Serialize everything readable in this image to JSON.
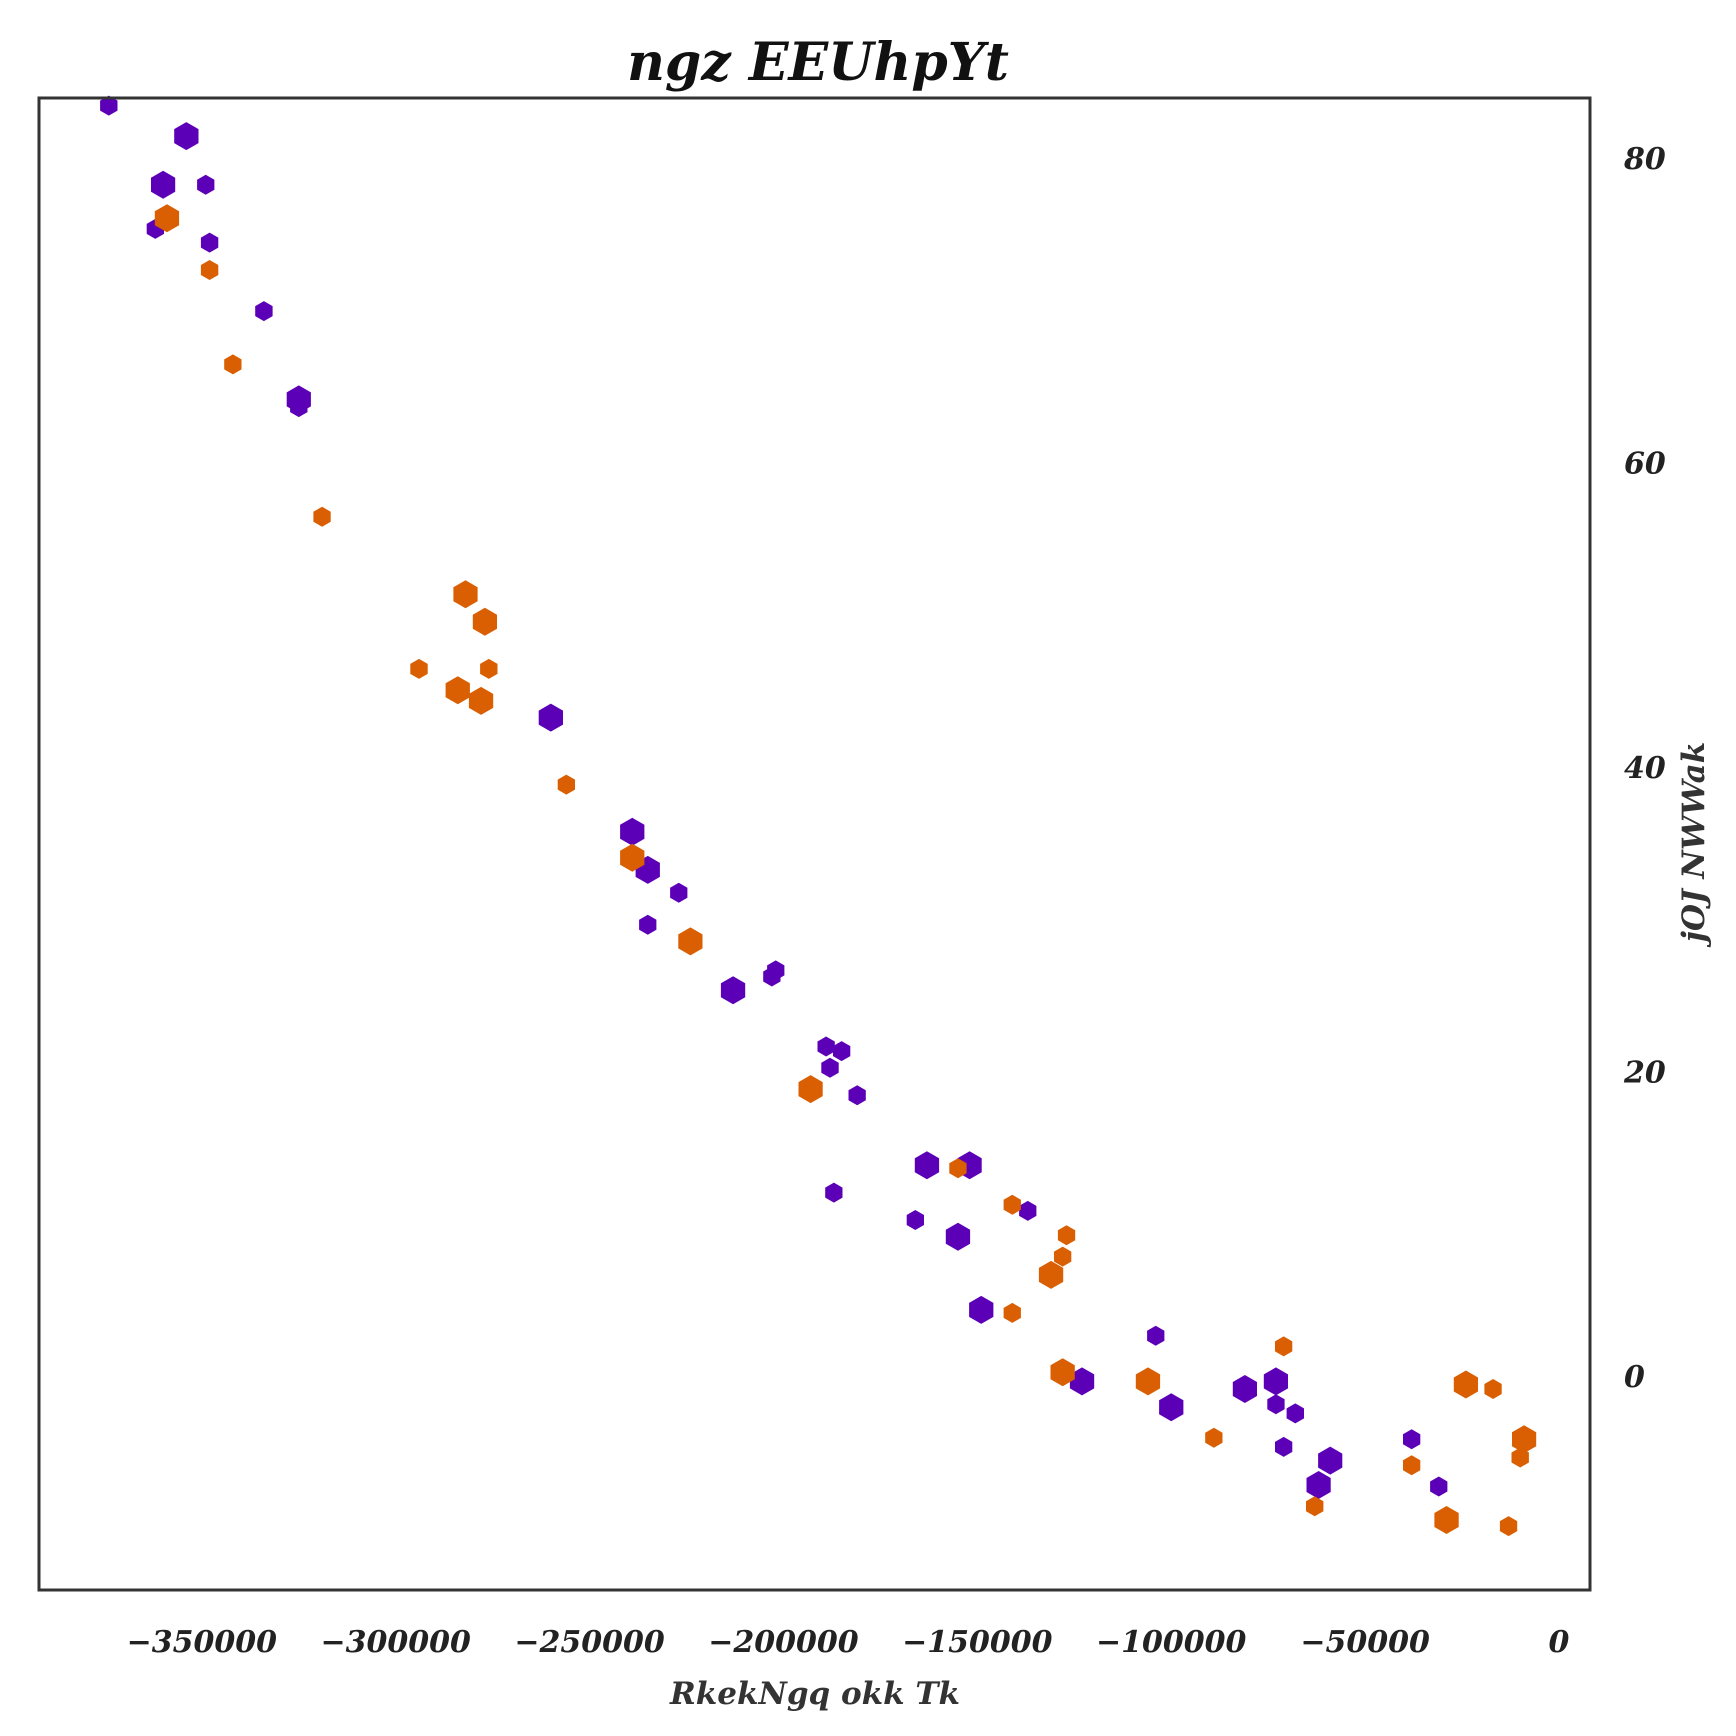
{
  "chart_data": {
    "type": "scatter",
    "title": "ngz EEUhpYt",
    "xlabel": "RkekNgq okk Tk",
    "ylabel": "jOJ NWWak",
    "y_axis_side": "right",
    "marker": "hexagon",
    "grid": false,
    "legend": "none",
    "xlim": [
      -392000,
      8000
    ],
    "ylim": [
      -14,
      84
    ],
    "x_ticks": [
      {
        "value": -350000,
        "label": "−350000"
      },
      {
        "value": -300000,
        "label": "−300000"
      },
      {
        "value": -250000,
        "label": "−250000"
      },
      {
        "value": -200000,
        "label": "−200000"
      },
      {
        "value": -150000,
        "label": "−150000"
      },
      {
        "value": -100000,
        "label": "−100000"
      },
      {
        "value": -50000,
        "label": "−50000"
      },
      {
        "value": 0,
        "label": "0"
      }
    ],
    "y_ticks": [
      {
        "value": 0,
        "label": "0"
      },
      {
        "value": 20,
        "label": "20"
      },
      {
        "value": 40,
        "label": "40"
      },
      {
        "value": 60,
        "label": "60"
      },
      {
        "value": 80,
        "label": "80"
      }
    ],
    "series": [
      {
        "color": "#5c00b8",
        "points": [
          {
            "x": -374000,
            "y": 83.5,
            "size": "small"
          },
          {
            "x": -354000,
            "y": 81.5,
            "size": "large"
          },
          {
            "x": -360000,
            "y": 78.3,
            "size": "large"
          },
          {
            "x": -349000,
            "y": 78.3,
            "size": "small"
          },
          {
            "x": -362000,
            "y": 75.4,
            "size": "small"
          },
          {
            "x": -348000,
            "y": 74.5,
            "size": "small"
          },
          {
            "x": -334000,
            "y": 70.0,
            "size": "small"
          },
          {
            "x": -325000,
            "y": 63.7,
            "size": "small"
          },
          {
            "x": -325000,
            "y": 64.2,
            "size": "large"
          },
          {
            "x": -260000,
            "y": 43.3,
            "size": "large"
          },
          {
            "x": -239000,
            "y": 35.8,
            "size": "large"
          },
          {
            "x": -235000,
            "y": 33.3,
            "size": "large"
          },
          {
            "x": -227000,
            "y": 31.8,
            "size": "small"
          },
          {
            "x": -235000,
            "y": 29.7,
            "size": "small"
          },
          {
            "x": -213000,
            "y": 25.4,
            "size": "large"
          },
          {
            "x": -203000,
            "y": 26.3,
            "size": "small"
          },
          {
            "x": -202000,
            "y": 26.7,
            "size": "small"
          },
          {
            "x": -189000,
            "y": 21.7,
            "size": "small"
          },
          {
            "x": -185000,
            "y": 21.4,
            "size": "small"
          },
          {
            "x": -188000,
            "y": 20.3,
            "size": "small"
          },
          {
            "x": -181000,
            "y": 18.5,
            "size": "small"
          },
          {
            "x": -187000,
            "y": 12.1,
            "size": "small"
          },
          {
            "x": -163000,
            "y": 13.9,
            "size": "large"
          },
          {
            "x": -152000,
            "y": 13.9,
            "size": "large"
          },
          {
            "x": -166000,
            "y": 10.3,
            "size": "small"
          },
          {
            "x": -155000,
            "y": 9.2,
            "size": "large"
          },
          {
            "x": -137000,
            "y": 10.9,
            "size": "small"
          },
          {
            "x": -149000,
            "y": 4.4,
            "size": "large"
          },
          {
            "x": -123000,
            "y": -0.3,
            "size": "large"
          },
          {
            "x": -104000,
            "y": 2.7,
            "size": "small"
          },
          {
            "x": -100000,
            "y": -2.0,
            "size": "large"
          },
          {
            "x": -81000,
            "y": -0.8,
            "size": "large"
          },
          {
            "x": -73000,
            "y": -0.3,
            "size": "large"
          },
          {
            "x": -73000,
            "y": -1.8,
            "size": "small"
          },
          {
            "x": -68000,
            "y": -2.4,
            "size": "small"
          },
          {
            "x": -71000,
            "y": -4.6,
            "size": "small"
          },
          {
            "x": -59000,
            "y": -5.5,
            "size": "large"
          },
          {
            "x": -62000,
            "y": -7.1,
            "size": "large"
          },
          {
            "x": -38000,
            "y": -4.1,
            "size": "small"
          },
          {
            "x": -31000,
            "y": -7.2,
            "size": "small"
          }
        ]
      },
      {
        "color": "#d95f02",
        "points": [
          {
            "x": -359000,
            "y": 76.1,
            "size": "large"
          },
          {
            "x": -348000,
            "y": 72.7,
            "size": "small"
          },
          {
            "x": -342000,
            "y": 66.5,
            "size": "small"
          },
          {
            "x": -319000,
            "y": 56.5,
            "size": "small"
          },
          {
            "x": -282000,
            "y": 51.4,
            "size": "large"
          },
          {
            "x": -277000,
            "y": 49.6,
            "size": "large"
          },
          {
            "x": -294000,
            "y": 46.5,
            "size": "small"
          },
          {
            "x": -276000,
            "y": 46.5,
            "size": "small"
          },
          {
            "x": -284000,
            "y": 45.1,
            "size": "large"
          },
          {
            "x": -278000,
            "y": 44.4,
            "size": "large"
          },
          {
            "x": -256000,
            "y": 38.9,
            "size": "small"
          },
          {
            "x": -239000,
            "y": 34.1,
            "size": "large"
          },
          {
            "x": -224000,
            "y": 28.6,
            "size": "large"
          },
          {
            "x": -193000,
            "y": 18.9,
            "size": "large"
          },
          {
            "x": -155000,
            "y": 13.7,
            "size": "small"
          },
          {
            "x": -141000,
            "y": 11.3,
            "size": "small"
          },
          {
            "x": -127000,
            "y": 9.3,
            "size": "small"
          },
          {
            "x": -128000,
            "y": 7.9,
            "size": "small"
          },
          {
            "x": -131000,
            "y": 6.7,
            "size": "large"
          },
          {
            "x": -141000,
            "y": 4.2,
            "size": "small"
          },
          {
            "x": -128000,
            "y": 0.3,
            "size": "large"
          },
          {
            "x": -106000,
            "y": -0.3,
            "size": "large"
          },
          {
            "x": -71000,
            "y": 2.0,
            "size": "small"
          },
          {
            "x": -89000,
            "y": -4.0,
            "size": "small"
          },
          {
            "x": -24000,
            "y": -0.5,
            "size": "large"
          },
          {
            "x": -17000,
            "y": -0.8,
            "size": "small"
          },
          {
            "x": -9000,
            "y": -4.1,
            "size": "large"
          },
          {
            "x": -10000,
            "y": -5.3,
            "size": "small"
          },
          {
            "x": -38000,
            "y": -5.8,
            "size": "small"
          },
          {
            "x": -63000,
            "y": -8.5,
            "size": "small"
          },
          {
            "x": -29000,
            "y": -9.4,
            "size": "large"
          },
          {
            "x": -13000,
            "y": -9.8,
            "size": "small"
          }
        ]
      }
    ]
  }
}
